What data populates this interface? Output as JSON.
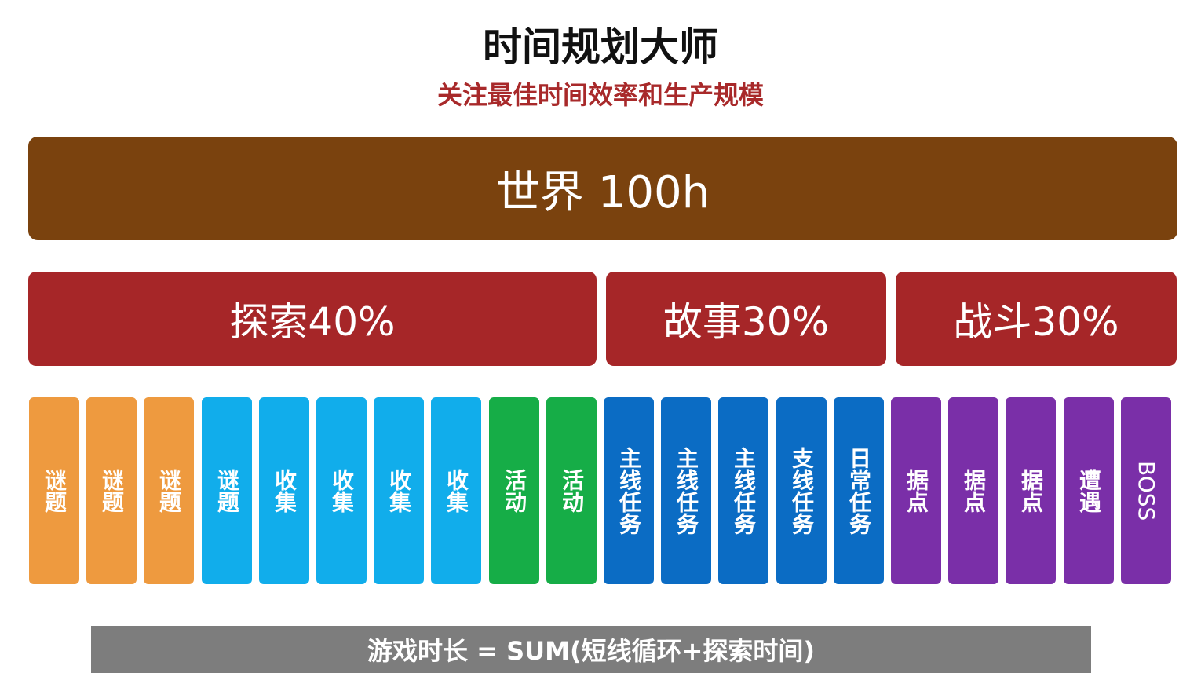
{
  "title": "时间规划大师",
  "subtitle": "关注最佳时间效率和生产规模",
  "world": {
    "label": "世界 100h",
    "color": "#7a420e"
  },
  "categories": [
    {
      "label": "探索40%",
      "color": "#a62628"
    },
    {
      "label": "故事30%",
      "color": "#a62628"
    },
    {
      "label": "战斗30%",
      "color": "#a62628"
    }
  ],
  "colors": {
    "puzzle": "#ee9a3f",
    "collect": "#11adeb",
    "activity": "#16ad47",
    "quest": "#0b6cc4",
    "combat": "#7a2fa8"
  },
  "items": [
    {
      "label": "谜题",
      "group": "puzzle"
    },
    {
      "label": "谜题",
      "group": "puzzle"
    },
    {
      "label": "谜题",
      "group": "puzzle"
    },
    {
      "label": "谜题",
      "group": "collect"
    },
    {
      "label": "收集",
      "group": "collect"
    },
    {
      "label": "收集",
      "group": "collect"
    },
    {
      "label": "收集",
      "group": "collect"
    },
    {
      "label": "收集",
      "group": "collect"
    },
    {
      "label": "活动",
      "group": "activity"
    },
    {
      "label": "活动",
      "group": "activity"
    },
    {
      "label": "主线任务",
      "group": "quest"
    },
    {
      "label": "主线任务",
      "group": "quest"
    },
    {
      "label": "主线任务",
      "group": "quest"
    },
    {
      "label": "支线任务",
      "group": "quest"
    },
    {
      "label": "日常任务",
      "group": "quest"
    },
    {
      "label": "据点",
      "group": "combat"
    },
    {
      "label": "据点",
      "group": "combat"
    },
    {
      "label": "据点",
      "group": "combat"
    },
    {
      "label": "遭遇",
      "group": "combat"
    },
    {
      "label": "BOSS",
      "group": "combat"
    }
  ],
  "formula": "游戏时长 = SUM(短线循环+探索时间)"
}
